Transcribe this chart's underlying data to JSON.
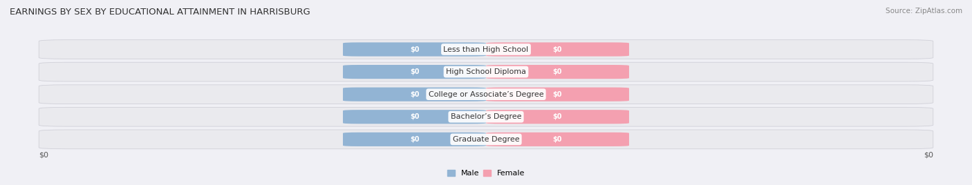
{
  "title": "EARNINGS BY SEX BY EDUCATIONAL ATTAINMENT IN HARRISBURG",
  "source": "Source: ZipAtlas.com",
  "categories": [
    "Less than High School",
    "High School Diploma",
    "College or Associate’s Degree",
    "Bachelor’s Degree",
    "Graduate Degree"
  ],
  "male_values": [
    0,
    0,
    0,
    0,
    0
  ],
  "female_values": [
    0,
    0,
    0,
    0,
    0
  ],
  "male_color": "#92b4d4",
  "female_color": "#f4a0b0",
  "bar_bg_color": "#eaeaee",
  "bar_bg_edge_color": "#d0d0d8",
  "row_alt_color": "#f5f5f8",
  "background_color": "#f0f0f5",
  "title_fontsize": 9.5,
  "source_fontsize": 7.5,
  "label_fontsize": 8,
  "tick_fontsize": 8,
  "bar_height": 0.62,
  "xlabel_left": "$0",
  "xlabel_right": "$0",
  "legend_male": "Male",
  "legend_female": "Female",
  "value_label": "$0",
  "bar_width": 0.32,
  "label_bg_color": "white",
  "label_text_color": "#333333"
}
